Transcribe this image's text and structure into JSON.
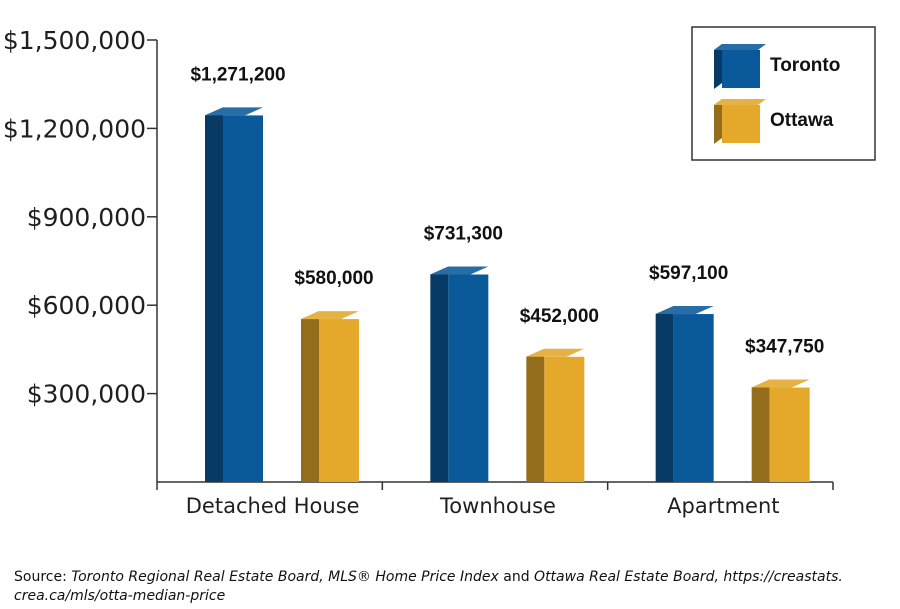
{
  "chart_data": {
    "type": "bar",
    "title": "",
    "xlabel": "",
    "ylabel": "",
    "categories": [
      "Detached House",
      "Townhouse",
      "Apartment"
    ],
    "series": [
      {
        "name": "Toronto",
        "color": "#0a5a9b",
        "values": [
          1271200,
          731300,
          597100
        ],
        "labels": [
          "$1,271,200",
          "$731,300",
          "$597,100"
        ]
      },
      {
        "name": "Ottawa",
        "color": "#e4a82b",
        "values": [
          580000,
          452000,
          347750
        ],
        "labels": [
          "$580,000",
          "$452,000",
          "$347,750"
        ]
      }
    ],
    "yticks": [
      300000,
      600000,
      900000,
      1200000,
      1500000
    ],
    "ytick_labels": [
      "$300,000",
      "$600,000",
      "$900,000",
      "$1,200,000",
      "$1,500,000"
    ],
    "ylim": [
      0,
      1500000
    ],
    "grid": false,
    "legend_position": "top-right",
    "bar_style": "3d"
  },
  "source": {
    "prefix": "Source: ",
    "part1": "Toronto Regional Real Estate Board, MLS® Home Price Index",
    "joiner": " and ",
    "part2": "Ottawa Real Estate Board, https://creastats.",
    "part3": "crea.ca/mls/otta-median-price"
  }
}
